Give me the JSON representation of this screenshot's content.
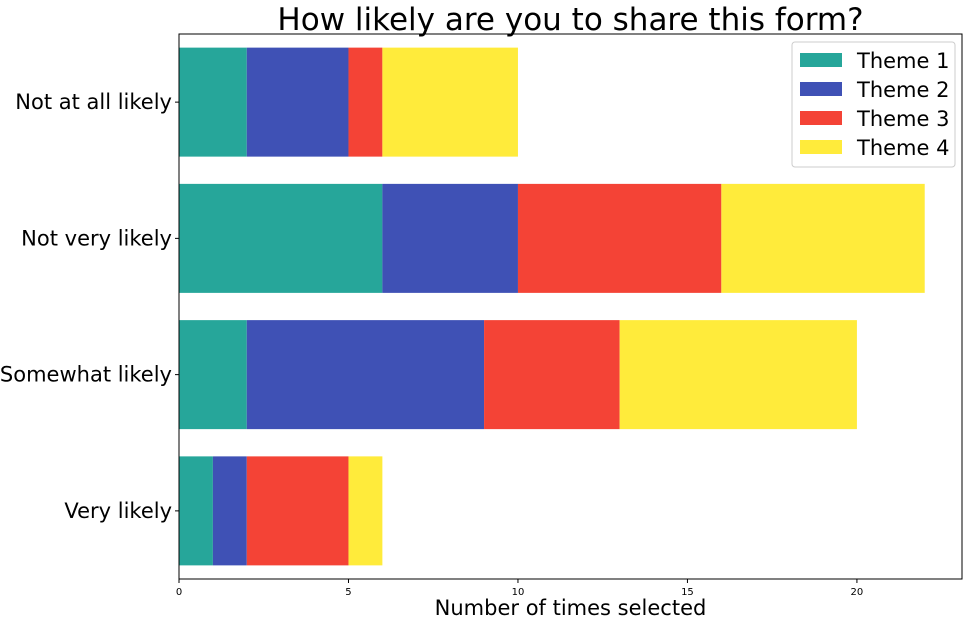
{
  "chart_data": {
    "type": "bar",
    "orientation": "horizontal",
    "stacked": true,
    "title": "How likely are you to share this form?",
    "xlabel": "Number of times selected",
    "ylabel": "",
    "categories": [
      "Not at all likely",
      "Not very likely",
      "Somewhat likely",
      "Very likely"
    ],
    "series": [
      {
        "name": "Theme 1",
        "color": "#26a69a",
        "values": [
          2,
          6,
          2,
          1
        ]
      },
      {
        "name": "Theme 2",
        "color": "#3f51b5",
        "values": [
          3,
          4,
          7,
          1
        ]
      },
      {
        "name": "Theme 3",
        "color": "#f44336",
        "values": [
          1,
          6,
          4,
          3
        ]
      },
      {
        "name": "Theme 4",
        "color": "#ffeb3b",
        "values": [
          4,
          6,
          7,
          1
        ]
      }
    ],
    "xlim": [
      0,
      23.1
    ],
    "xticks": [
      0,
      5,
      10,
      15,
      20
    ],
    "grid": false,
    "legend": "top-right"
  }
}
